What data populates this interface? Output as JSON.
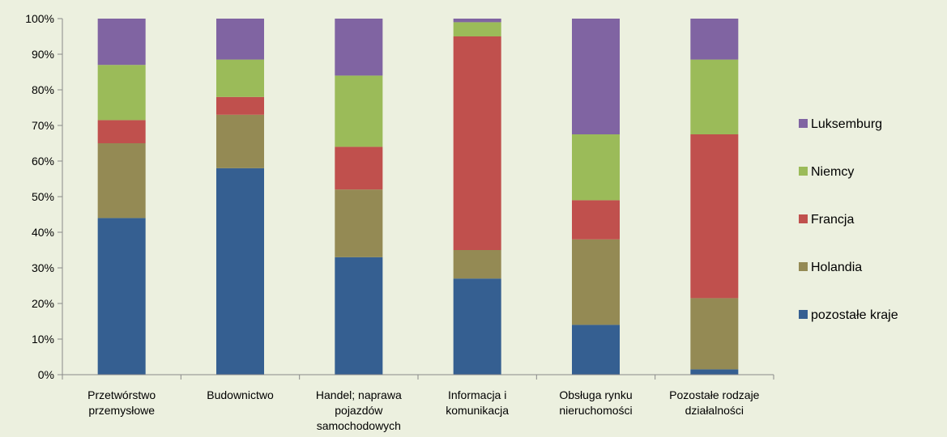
{
  "chart_data": {
    "type": "bar",
    "stacked": true,
    "percent": true,
    "categories": [
      [
        "Przetwórstwo",
        "przemysłowe"
      ],
      [
        "Budownictwo"
      ],
      [
        "Handel; naprawa",
        "pojazdów",
        "samochodowych"
      ],
      [
        "Informacja i",
        "komunikacja"
      ],
      [
        "Obsługa rynku",
        "nieruchomości"
      ],
      [
        "Pozostałe rodzaje",
        "działalności"
      ]
    ],
    "series": [
      {
        "name": "pozostałe kraje",
        "color": "#355f91",
        "values": [
          44,
          58,
          33,
          27,
          14,
          1.5
        ]
      },
      {
        "name": "Holandia",
        "color": "#948a54",
        "values": [
          21,
          15,
          19,
          8,
          24,
          20
        ]
      },
      {
        "name": "Francja",
        "color": "#c0504d",
        "values": [
          6.5,
          5,
          12,
          60,
          11,
          46
        ]
      },
      {
        "name": "Niemcy",
        "color": "#9bbb59",
        "values": [
          15.5,
          10.5,
          20,
          4,
          18.5,
          21
        ]
      },
      {
        "name": "Luksemburg",
        "color": "#8064a2",
        "values": [
          13,
          11.5,
          16,
          1,
          32.5,
          11.5
        ]
      }
    ],
    "y_ticks": [
      "0%",
      "10%",
      "20%",
      "30%",
      "40%",
      "50%",
      "60%",
      "70%",
      "80%",
      "90%",
      "100%"
    ],
    "ylim": [
      0,
      100
    ],
    "legend": [
      "Luksemburg",
      "Niemcy",
      "Francja",
      "Holandia",
      "pozostałe kraje"
    ],
    "legend_position": "right",
    "grid": false
  }
}
